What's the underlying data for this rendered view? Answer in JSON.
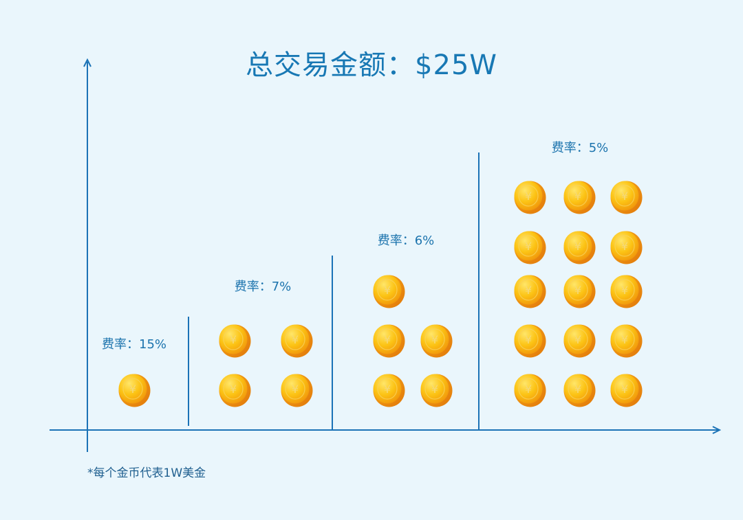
{
  "title": "总交易金额：$25W",
  "footnote": "*每个金币代表1W美金",
  "coin_symbol": "¥",
  "colors": {
    "axis": "#1a72b6",
    "text": "#1b73ad",
    "background": "#eaf6fc",
    "coin_face": "#fcc314",
    "coin_rim": "#f39b0f",
    "coin_symbol": "#f5d978"
  },
  "tiers": [
    {
      "rate_label": "费率：15%",
      "coins": 1
    },
    {
      "rate_label": "费率：7%",
      "coins": 4
    },
    {
      "rate_label": "费率：6%",
      "coins": 5
    },
    {
      "rate_label": "费率：5%",
      "coins": 15
    }
  ]
}
